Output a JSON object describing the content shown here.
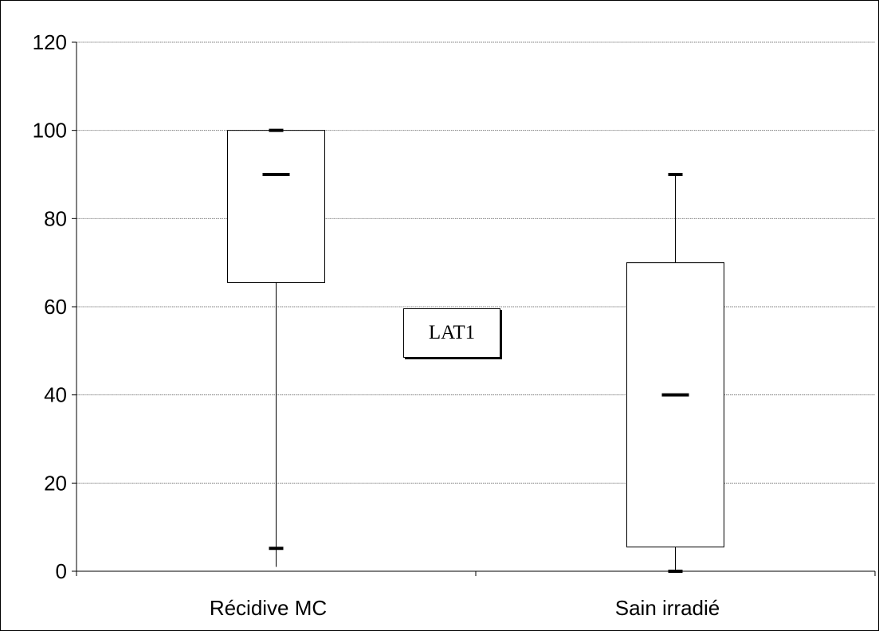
{
  "chart_data": {
    "type": "box",
    "title": "",
    "xlabel": "",
    "ylabel": "",
    "ylim": [
      0,
      120
    ],
    "yticks": [
      0,
      20,
      40,
      60,
      80,
      100,
      120
    ],
    "grid": true,
    "categories": [
      "Récidive MC",
      "Sain irradié"
    ],
    "boxes": [
      {
        "category": "Récidive MC",
        "min": 1,
        "q1": 65.5,
        "median": 90,
        "q3": 100,
        "max": 100,
        "low_marker": 5.2
      },
      {
        "category": "Sain irradié",
        "min": 0,
        "q1": 5.5,
        "median": 40,
        "q3": 70,
        "max": 90,
        "low_marker": 0
      }
    ],
    "annotations": [
      "LAT1"
    ]
  },
  "colors": {
    "line": "#000000",
    "grid": "#808080",
    "box_fill": "#ffffff"
  }
}
